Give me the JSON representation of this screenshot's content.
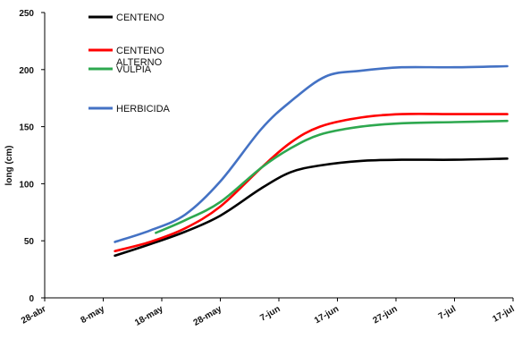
{
  "chart_data": {
    "type": "line",
    "ylabel": "long (cm)",
    "xlabel": "",
    "ylim": [
      0,
      250
    ],
    "yticks": [
      0,
      50,
      100,
      150,
      200,
      250
    ],
    "xlim": [
      "2019-04-28",
      "2019-07-17"
    ],
    "xticks": [
      {
        "date": "2019-04-28",
        "label": "28-abr"
      },
      {
        "date": "2019-05-08",
        "label": "8-may"
      },
      {
        "date": "2019-05-18",
        "label": "18-may"
      },
      {
        "date": "2019-05-28",
        "label": "28-may"
      },
      {
        "date": "2019-06-07",
        "label": "7-jun"
      },
      {
        "date": "2019-06-17",
        "label": "17-jun"
      },
      {
        "date": "2019-06-27",
        "label": "27-jun"
      },
      {
        "date": "2019-07-07",
        "label": "7-jul"
      },
      {
        "date": "2019-07-17",
        "label": "17-jul"
      }
    ],
    "grid": false,
    "legend_position": "top-left",
    "series": [
      {
        "name": "CENTENO",
        "color": "#000000",
        "points": [
          {
            "x": "2019-05-10",
            "y": 37
          },
          {
            "x": "2019-05-16",
            "y": 47
          },
          {
            "x": "2019-05-22",
            "y": 58
          },
          {
            "x": "2019-05-28",
            "y": 72
          },
          {
            "x": "2019-06-04",
            "y": 96
          },
          {
            "x": "2019-06-09",
            "y": 110
          },
          {
            "x": "2019-06-14",
            "y": 116
          },
          {
            "x": "2019-06-21",
            "y": 120
          },
          {
            "x": "2019-06-28",
            "y": 121
          },
          {
            "x": "2019-07-07",
            "y": 121
          },
          {
            "x": "2019-07-16",
            "y": 122
          }
        ]
      },
      {
        "name": "CENTENO ALTERNO",
        "color": "#ff0000",
        "points": [
          {
            "x": "2019-05-10",
            "y": 41
          },
          {
            "x": "2019-05-16",
            "y": 49
          },
          {
            "x": "2019-05-22",
            "y": 61
          },
          {
            "x": "2019-05-28",
            "y": 80
          },
          {
            "x": "2019-06-04",
            "y": 114
          },
          {
            "x": "2019-06-09",
            "y": 136
          },
          {
            "x": "2019-06-14",
            "y": 150
          },
          {
            "x": "2019-06-21",
            "y": 158
          },
          {
            "x": "2019-06-28",
            "y": 161
          },
          {
            "x": "2019-07-07",
            "y": 161
          },
          {
            "x": "2019-07-16",
            "y": 161
          }
        ]
      },
      {
        "name": "VULPIA",
        "color": "#2ea84f",
        "points": [
          {
            "x": "2019-05-17",
            "y": 57
          },
          {
            "x": "2019-05-22",
            "y": 68
          },
          {
            "x": "2019-05-28",
            "y": 84
          },
          {
            "x": "2019-06-04",
            "y": 114
          },
          {
            "x": "2019-06-09",
            "y": 131
          },
          {
            "x": "2019-06-14",
            "y": 143
          },
          {
            "x": "2019-06-21",
            "y": 150
          },
          {
            "x": "2019-06-28",
            "y": 153
          },
          {
            "x": "2019-07-07",
            "y": 154
          },
          {
            "x": "2019-07-16",
            "y": 155
          }
        ]
      },
      {
        "name": "HERBICIDA",
        "color": "#4472c4",
        "points": [
          {
            "x": "2019-05-10",
            "y": 49
          },
          {
            "x": "2019-05-16",
            "y": 59
          },
          {
            "x": "2019-05-22",
            "y": 73
          },
          {
            "x": "2019-05-28",
            "y": 102
          },
          {
            "x": "2019-06-04",
            "y": 148
          },
          {
            "x": "2019-06-09",
            "y": 172
          },
          {
            "x": "2019-06-15",
            "y": 194
          },
          {
            "x": "2019-06-21",
            "y": 199
          },
          {
            "x": "2019-06-28",
            "y": 202
          },
          {
            "x": "2019-07-07",
            "y": 202
          },
          {
            "x": "2019-07-16",
            "y": 203
          }
        ]
      }
    ]
  }
}
